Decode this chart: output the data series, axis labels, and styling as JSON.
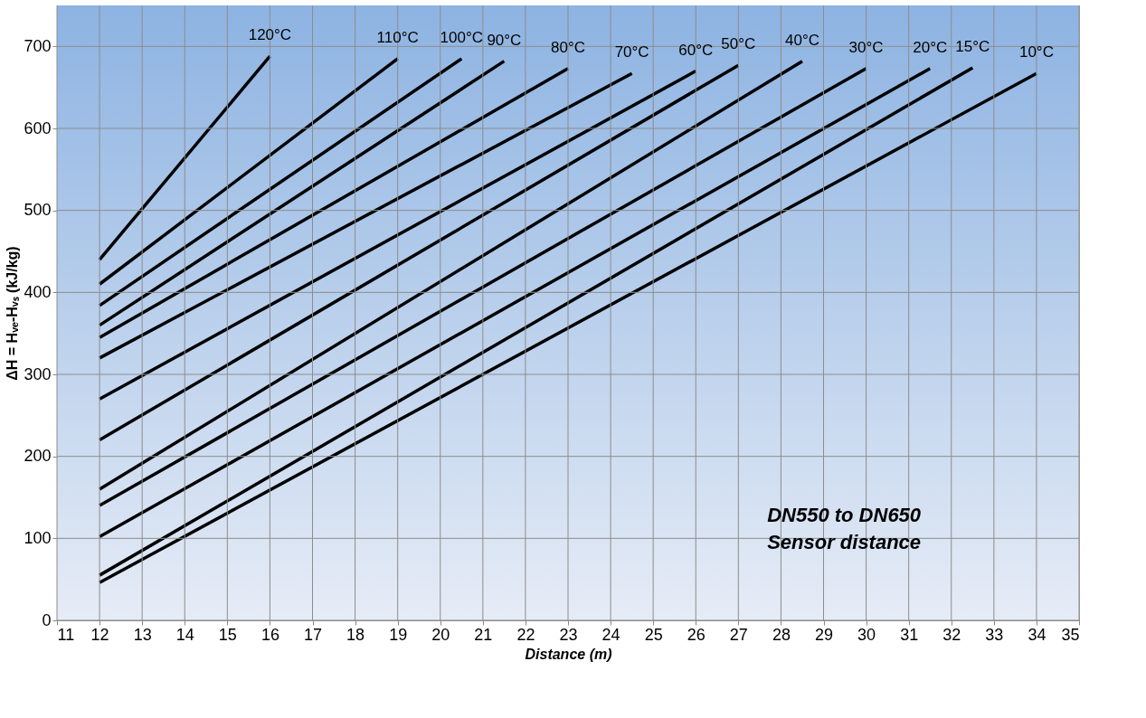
{
  "chart_data": {
    "type": "line",
    "xlabel": "Distance (m)",
    "ylabel": "ΔH = Hᵥₑ-Hᵥₛ (kJ/kg)",
    "xlim": [
      11,
      35
    ],
    "xticks": [
      11,
      12,
      13,
      14,
      15,
      16,
      17,
      18,
      19,
      20,
      21,
      22,
      23,
      24,
      25,
      26,
      27,
      28,
      29,
      30,
      31,
      32,
      33,
      34,
      35
    ],
    "ylim": [
      0,
      750
    ],
    "yticks": [
      0,
      100,
      200,
      300,
      400,
      500,
      600,
      700
    ],
    "grid": true,
    "legend": false,
    "line_style": "solid",
    "marker": "none",
    "annotations": [
      "DN550 to DN650",
      "Sensor distance"
    ],
    "series": [
      {
        "name": "120°C",
        "color": "#000000",
        "x": [
          12,
          16
        ],
        "values": [
          440,
          688
        ]
      },
      {
        "name": "110°C",
        "color": "#000000",
        "x": [
          12,
          19
        ],
        "values": [
          410,
          685
        ]
      },
      {
        "name": "100°C",
        "color": "#000000",
        "x": [
          12,
          20.5
        ],
        "values": [
          384,
          685
        ]
      },
      {
        "name": "90°C",
        "color": "#000000",
        "x": [
          12,
          21.5
        ],
        "values": [
          360,
          682
        ]
      },
      {
        "name": "80°C",
        "color": "#000000",
        "x": [
          12,
          23
        ],
        "values": [
          345,
          673
        ]
      },
      {
        "name": "70°C",
        "color": "#000000",
        "x": [
          12,
          24.5
        ],
        "values": [
          320,
          667
        ]
      },
      {
        "name": "60°C",
        "color": "#000000",
        "x": [
          12,
          26
        ],
        "values": [
          270,
          670
        ]
      },
      {
        "name": "50°C",
        "color": "#000000",
        "x": [
          12,
          27
        ],
        "values": [
          220,
          677
        ]
      },
      {
        "name": "40°C",
        "color": "#000000",
        "x": [
          12,
          28.5
        ],
        "values": [
          160,
          682
        ]
      },
      {
        "name": "30°C",
        "color": "#000000",
        "x": [
          12,
          30
        ],
        "values": [
          140,
          673
        ]
      },
      {
        "name": "20°C",
        "color": "#000000",
        "x": [
          12,
          31.5
        ],
        "values": [
          102,
          673
        ]
      },
      {
        "name": "15°C",
        "color": "#000000",
        "x": [
          12,
          32.5
        ],
        "values": [
          55,
          674
        ]
      },
      {
        "name": "10°C",
        "color": "#000000",
        "x": [
          12,
          34
        ],
        "values": [
          46,
          667
        ]
      }
    ]
  }
}
